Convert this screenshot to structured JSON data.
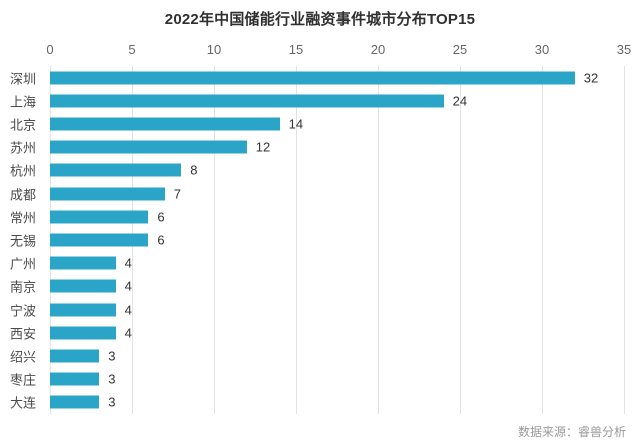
{
  "title": "2022年中国储能行业融资事件城市分布TOP15",
  "source": "数据来源：睿兽分析",
  "colors": {
    "bar": "#2BA5C7",
    "grid": "#e3e3e3",
    "title_text": "#303030",
    "axis_text": "#666666",
    "category_text": "#4a4a4a",
    "value_text": "#333333",
    "source_text": "#9a9a9a",
    "background": "#ffffff"
  },
  "chart_data": {
    "type": "bar",
    "orientation": "horizontal",
    "title": "2022年中国储能行业融资事件城市分布TOP15",
    "categories": [
      "深圳",
      "上海",
      "北京",
      "苏州",
      "杭州",
      "成都",
      "常州",
      "无锡",
      "广州",
      "南京",
      "宁波",
      "西安",
      "绍兴",
      "枣庄",
      "大连"
    ],
    "values": [
      32,
      24,
      14,
      12,
      8,
      7,
      6,
      6,
      4,
      4,
      4,
      4,
      3,
      3,
      3
    ],
    "x_ticks": [
      0,
      5,
      10,
      15,
      20,
      25,
      30,
      35
    ],
    "xlim": [
      0,
      35
    ],
    "grid": true,
    "axis_position": "top",
    "value_labels": true,
    "legend": false,
    "xlabel": "",
    "ylabel": ""
  }
}
